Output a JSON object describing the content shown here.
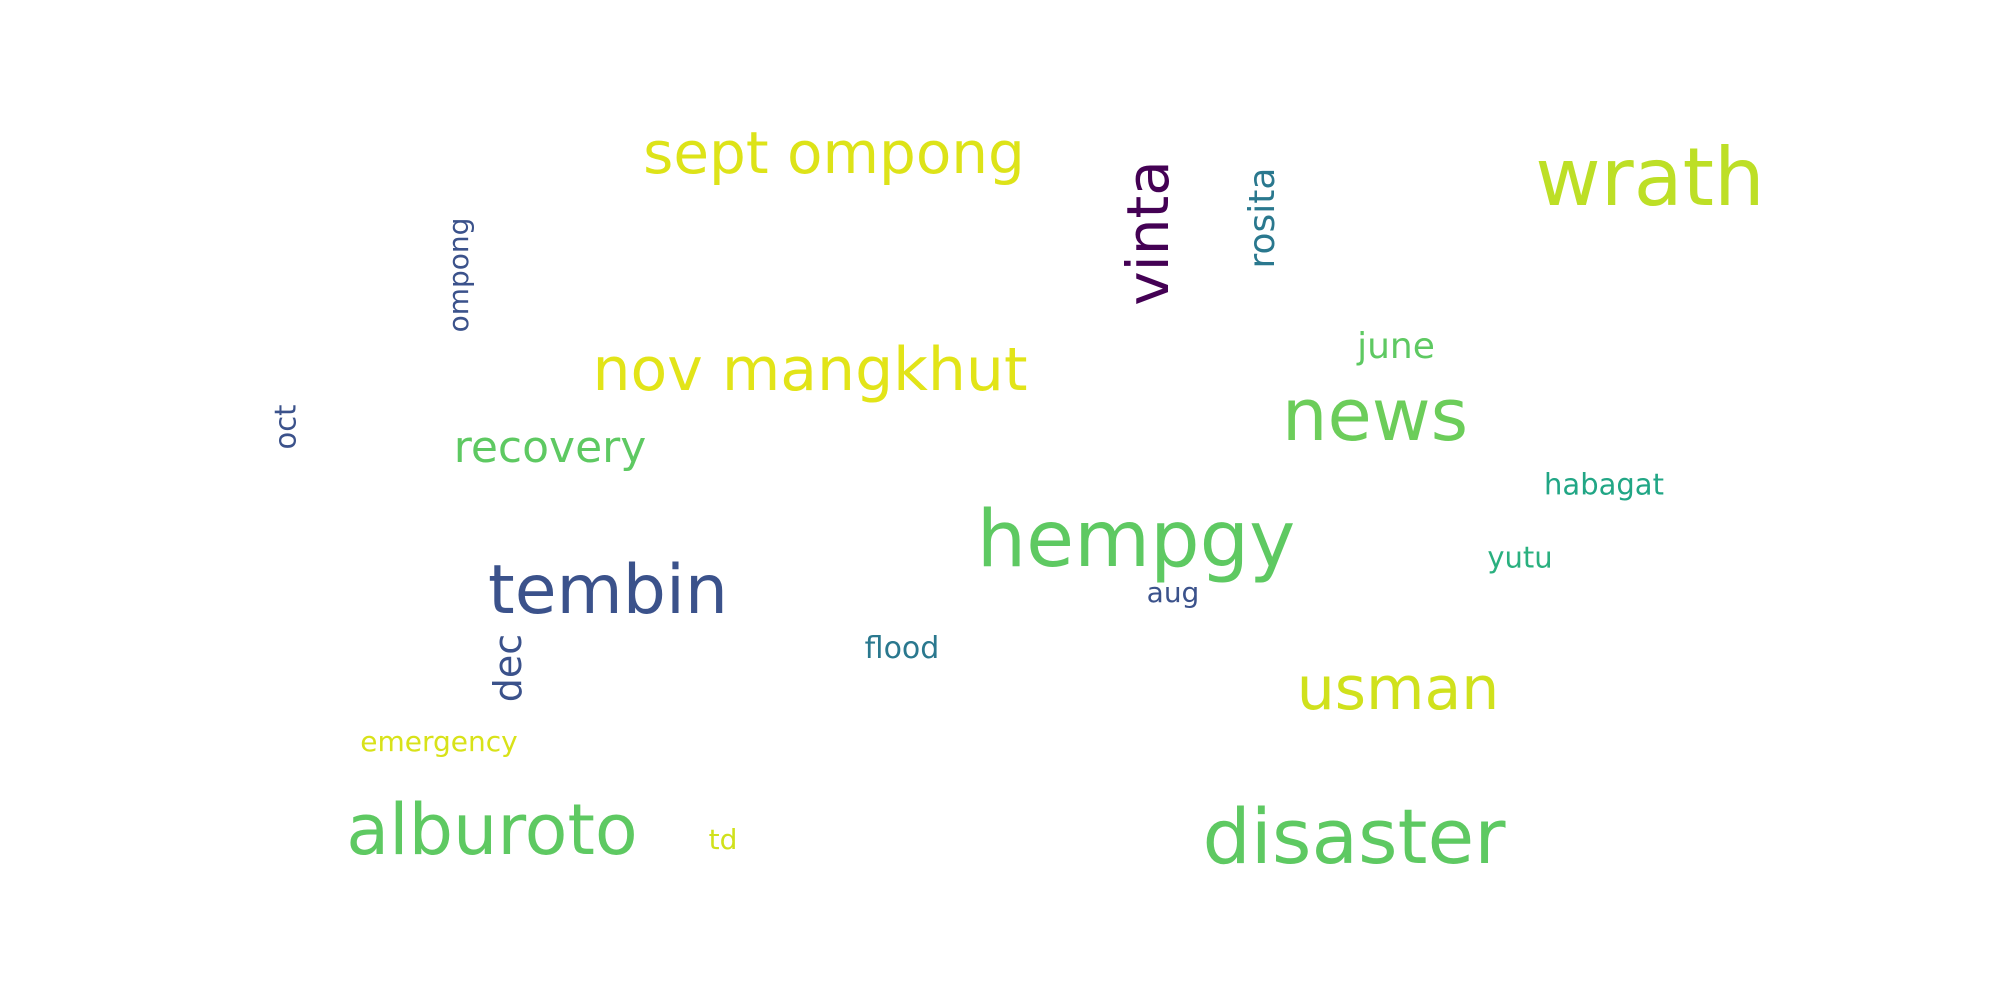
{
  "words": {
    "sept_ompong": {
      "text": "sept ompong",
      "color": "#dde318"
    },
    "wrath": {
      "text": "wrath",
      "color": "#bddf26"
    },
    "vinta": {
      "text": "vinta",
      "color": "#440154"
    },
    "rosita": {
      "text": "rosita",
      "color": "#2a788e"
    },
    "ompong": {
      "text": "ompong",
      "color": "#3b528b"
    },
    "nov_mangkhut": {
      "text": "nov mangkhut",
      "color": "#e2e418"
    },
    "june": {
      "text": "june",
      "color": "#5ec962"
    },
    "news": {
      "text": "news",
      "color": "#6ccd5a"
    },
    "oct": {
      "text": "oct",
      "color": "#3b528b"
    },
    "recovery": {
      "text": "recovery",
      "color": "#5ec962"
    },
    "habagat": {
      "text": "habagat",
      "color": "#21a685"
    },
    "hempgy": {
      "text": "hempgy",
      "color": "#5ec962"
    },
    "tembin": {
      "text": "tembin",
      "color": "#3b528b"
    },
    "yutu": {
      "text": "yutu",
      "color": "#2ab07f"
    },
    "aug": {
      "text": "aug",
      "color": "#3b528b"
    },
    "dec": {
      "text": "dec",
      "color": "#3b528b"
    },
    "flood": {
      "text": "flood",
      "color": "#2a788e"
    },
    "usman": {
      "text": "usman",
      "color": "#d0e11c"
    },
    "emergency": {
      "text": "emergency",
      "color": "#d8e219"
    },
    "alburoto": {
      "text": "alburoto",
      "color": "#5ec962"
    },
    "td": {
      "text": "td",
      "color": "#d0e11c"
    },
    "disaster": {
      "text": "disaster",
      "color": "#5ec962"
    }
  }
}
